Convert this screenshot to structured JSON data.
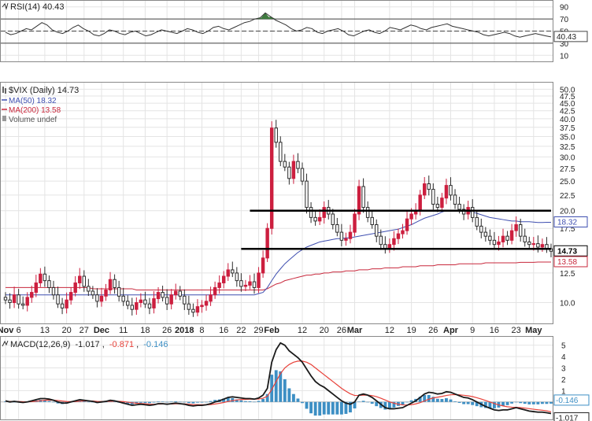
{
  "colors": {
    "up_candle": "#2c2c2c",
    "down_candle": "#cc1f3f",
    "ma50": "#3f4fb0",
    "ma200": "#c8283c",
    "macd_line": "#1a1a1a",
    "signal_line": "#e8423a",
    "histogram": "#3d8fc4",
    "rsi_line": "#333333",
    "rsi_overbought_fill": "#3e7a3e",
    "grid": "#e4e4e4",
    "level_line": "#000000"
  },
  "chart_data": [
    {
      "type": "line",
      "panel": "rsi",
      "legend": "RSI(14) 40.43",
      "last_value_label": "40.43",
      "ylim": [
        0,
        100
      ],
      "y_ticks": [
        "90",
        "70",
        "50",
        "30",
        "10"
      ],
      "y_tick_values": [
        90,
        70,
        50,
        30,
        10
      ],
      "reference_lines": [
        70,
        50,
        30
      ],
      "values": [
        48,
        44,
        46,
        50,
        54,
        52,
        58,
        64,
        60,
        52,
        48,
        46,
        50,
        56,
        60,
        54,
        50,
        44,
        42,
        46,
        52,
        50,
        46,
        44,
        48,
        50,
        46,
        42,
        44,
        48,
        52,
        50,
        48,
        46,
        50,
        54,
        52,
        48,
        46,
        50,
        56,
        58,
        54,
        52,
        56,
        60,
        64,
        66,
        70,
        72,
        80,
        74,
        68,
        64,
        60,
        54,
        50,
        52,
        56,
        54,
        48,
        46,
        50,
        52,
        54,
        50,
        44,
        42,
        46,
        50,
        52,
        48,
        46,
        50,
        56,
        54,
        52,
        56,
        60,
        58,
        54,
        52,
        56,
        58,
        60,
        62,
        58,
        56,
        54,
        52,
        50,
        48,
        44,
        42,
        44,
        46,
        48,
        46,
        42,
        40,
        42,
        44,
        46,
        44,
        42,
        40.43
      ]
    },
    {
      "type": "candlestick",
      "panel": "price",
      "legend": {
        "symbol": "$VIX (Daily) 14.73",
        "ma50": "MA(50) 18.32",
        "ma200": "MA(200) 13.58",
        "volume": "Volume undef"
      },
      "price_tags": [
        "18.32",
        "14.73",
        "13.58"
      ],
      "price_tag_values": [
        18.32,
        14.73,
        13.58
      ],
      "y_scale": "log",
      "ylim": [
        8.7,
        51
      ],
      "y_ticks": [
        "50.0",
        "47.5",
        "45.0",
        "42.5",
        "40.0",
        "37.5",
        "35.0",
        "32.5",
        "30.0",
        "27.5",
        "25.0",
        "22.5",
        "20.0",
        "17.5",
        "15.0",
        "12.5",
        "10.0"
      ],
      "y_tick_values": [
        50,
        47.5,
        45,
        42.5,
        40,
        37.5,
        35,
        32.5,
        30,
        27.5,
        25,
        22.5,
        20,
        17.5,
        15,
        12.5,
        10
      ],
      "x_ticks": [
        "Nov",
        "6",
        "13",
        "20",
        "27",
        "Dec",
        "11",
        "18",
        "26",
        "2018",
        "8",
        "16",
        "22",
        "29",
        "Feb",
        "12",
        "20",
        "26",
        "Mar",
        "12",
        "19",
        "26",
        "Apr",
        "9",
        "16",
        "23",
        "May"
      ],
      "x_tick_day_index": [
        0,
        3,
        9,
        14,
        18,
        22,
        27,
        32,
        37,
        41,
        45,
        50,
        54,
        58,
        61,
        68,
        73,
        77,
        80,
        88,
        93,
        98,
        102,
        107,
        112,
        117,
        121
      ],
      "horizontal_levels": [
        20.0,
        15.0
      ],
      "date_range": [
        "2017-11-01",
        "2018-05-08"
      ],
      "close": [
        10.2,
        10.0,
        10.6,
        9.9,
        9.8,
        10.4,
        10.8,
        11.6,
        12.4,
        11.8,
        11.2,
        10.6,
        9.9,
        9.6,
        10.2,
        10.8,
        11.6,
        12.2,
        11.3,
        10.9,
        10.6,
        10.1,
        10.5,
        11.0,
        11.9,
        11.2,
        10.5,
        10.1,
        9.8,
        9.5,
        10.0,
        10.2,
        9.9,
        9.6,
        10.3,
        10.8,
        10.4,
        9.9,
        10.6,
        10.9,
        10.5,
        9.9,
        9.5,
        9.3,
        9.7,
        9.8,
        10.1,
        10.6,
        11.2,
        11.6,
        12.2,
        12.8,
        12.5,
        11.8,
        11.3,
        11.4,
        11.7,
        11.2,
        12.5,
        14.0,
        17.5,
        37.3,
        33.5,
        29.0,
        27.8,
        25.5,
        29.0,
        27.5,
        25.0,
        20.5,
        19.0,
        18.5,
        19.0,
        20.5,
        19.5,
        18.0,
        17.0,
        16.0,
        16.2,
        17.0,
        19.5,
        24.0,
        20.5,
        19.0,
        18.0,
        16.5,
        15.5,
        15.0,
        15.5,
        16.2,
        16.8,
        17.2,
        18.8,
        19.5,
        20.0,
        22.5,
        24.5,
        23.5,
        21.0,
        20.5,
        22.0,
        24.2,
        22.5,
        21.0,
        20.2,
        19.5,
        20.5,
        19.0,
        17.8,
        17.0,
        16.5,
        16.0,
        15.5,
        15.8,
        16.5,
        16.0,
        17.2,
        18.0,
        16.5,
        15.8,
        15.5,
        15.6,
        15.2,
        15.5,
        15.0,
        14.73
      ],
      "ma50": [
        10.6,
        10.6,
        10.6,
        10.6,
        10.6,
        10.6,
        10.6,
        10.6,
        10.6,
        10.6,
        10.6,
        10.6,
        10.6,
        10.6,
        10.6,
        10.6,
        10.6,
        10.6,
        10.6,
        10.6,
        10.6,
        10.6,
        10.6,
        10.6,
        10.6,
        10.6,
        10.6,
        10.6,
        10.6,
        10.6,
        10.6,
        10.6,
        10.6,
        10.6,
        10.6,
        10.6,
        10.6,
        10.6,
        10.6,
        10.6,
        10.6,
        10.6,
        10.6,
        10.6,
        10.6,
        10.6,
        10.6,
        10.6,
        10.6,
        10.6,
        10.6,
        10.6,
        10.6,
        10.6,
        10.6,
        10.6,
        10.6,
        10.6,
        10.7,
        10.8,
        11.2,
        11.8,
        12.4,
        12.9,
        13.4,
        13.8,
        14.2,
        14.6,
        14.9,
        15.2,
        15.4,
        15.6,
        15.8,
        15.9,
        16.0,
        16.1,
        16.2,
        16.2,
        16.3,
        16.3,
        16.4,
        16.5,
        16.6,
        16.7,
        16.8,
        16.9,
        17.0,
        17.1,
        17.2,
        17.3,
        17.4,
        17.6,
        17.8,
        18.0,
        18.3,
        18.6,
        18.9,
        19.1,
        19.3,
        19.5,
        19.8,
        20.0,
        20.0,
        20.0,
        20.0,
        19.9,
        19.9,
        19.8,
        19.6,
        19.4,
        19.2,
        19.0,
        18.9,
        18.8,
        18.7,
        18.6,
        18.5,
        18.5,
        18.4,
        18.4,
        18.4,
        18.35,
        18.3,
        18.3,
        18.32,
        18.32
      ],
      "ma200": [
        11.2,
        11.2,
        11.2,
        11.2,
        11.2,
        11.2,
        11.2,
        11.2,
        11.2,
        11.2,
        11.2,
        11.2,
        11.2,
        11.2,
        11.2,
        11.2,
        11.2,
        11.2,
        11.2,
        11.2,
        11.1,
        11.1,
        11.1,
        11.1,
        11.1,
        11.1,
        11.1,
        11.1,
        11.1,
        11.1,
        11.0,
        11.0,
        11.0,
        11.0,
        11.0,
        11.0,
        11.0,
        11.0,
        11.0,
        11.0,
        11.0,
        11.0,
        11.0,
        11.0,
        11.0,
        11.0,
        11.0,
        11.0,
        11.0,
        11.0,
        11.0,
        11.0,
        11.0,
        11.0,
        11.0,
        11.0,
        11.0,
        11.0,
        11.0,
        11.0,
        11.1,
        11.3,
        11.5,
        11.6,
        11.8,
        11.9,
        12.0,
        12.1,
        12.2,
        12.3,
        12.3,
        12.4,
        12.4,
        12.5,
        12.5,
        12.6,
        12.6,
        12.6,
        12.7,
        12.7,
        12.7,
        12.8,
        12.8,
        12.8,
        12.9,
        12.9,
        12.9,
        13.0,
        13.0,
        13.0,
        13.0,
        13.1,
        13.1,
        13.1,
        13.1,
        13.2,
        13.2,
        13.2,
        13.2,
        13.3,
        13.3,
        13.3,
        13.3,
        13.3,
        13.4,
        13.4,
        13.4,
        13.4,
        13.4,
        13.4,
        13.5,
        13.5,
        13.5,
        13.5,
        13.5,
        13.5,
        13.5,
        13.5,
        13.55,
        13.55,
        13.55,
        13.55,
        13.58,
        13.58,
        13.58,
        13.58
      ]
    },
    {
      "type": "line",
      "panel": "macd",
      "legend": {
        "title": "MACD(12,26,9)",
        "macd": "-1.017",
        "signal": "-0.871",
        "hist": "-0.146"
      },
      "value_tags": [
        "-0.146",
        "-1.017"
      ],
      "value_tag_values": [
        -0.146,
        -1.017
      ],
      "ylim": [
        -1.4,
        5.6
      ],
      "y_ticks": [
        "5",
        "4",
        "3",
        "2",
        "1"
      ],
      "y_tick_values": [
        5,
        4,
        3,
        2,
        1
      ],
      "series": [
        {
          "name": "MACD",
          "values": [
            0.1,
            0.0,
            0.05,
            0.0,
            -0.05,
            0.0,
            0.1,
            0.2,
            0.3,
            0.3,
            0.25,
            0.15,
            0.0,
            -0.1,
            -0.1,
            0.0,
            0.1,
            0.2,
            0.15,
            0.1,
            0.05,
            -0.05,
            0.0,
            0.05,
            0.15,
            0.1,
            0.0,
            -0.1,
            -0.2,
            -0.3,
            -0.25,
            -0.2,
            -0.25,
            -0.3,
            -0.25,
            -0.15,
            -0.15,
            -0.2,
            -0.15,
            -0.1,
            -0.15,
            -0.2,
            -0.3,
            -0.35,
            -0.3,
            -0.3,
            -0.25,
            -0.15,
            0.0,
            0.1,
            0.25,
            0.4,
            0.45,
            0.4,
            0.35,
            0.3,
            0.3,
            0.25,
            0.35,
            0.6,
            1.2,
            3.5,
            4.6,
            5.2,
            5.0,
            4.5,
            4.2,
            3.9,
            3.5,
            2.9,
            2.3,
            1.8,
            1.5,
            1.3,
            1.0,
            0.7,
            0.4,
            0.1,
            -0.1,
            -0.2,
            0.0,
            0.6,
            0.7,
            0.6,
            0.4,
            0.1,
            -0.2,
            -0.5,
            -0.6,
            -0.6,
            -0.55,
            -0.5,
            -0.3,
            -0.1,
            0.1,
            0.4,
            0.7,
            0.85,
            0.8,
            0.7,
            0.75,
            0.9,
            0.85,
            0.7,
            0.55,
            0.4,
            0.35,
            0.2,
            0.0,
            -0.2,
            -0.4,
            -0.55,
            -0.7,
            -0.75,
            -0.7,
            -0.7,
            -0.6,
            -0.5,
            -0.6,
            -0.7,
            -0.8,
            -0.85,
            -0.9,
            -0.9,
            -0.95,
            -1.017
          ]
        },
        {
          "name": "Signal",
          "values": [
            0.05,
            0.05,
            0.05,
            0.04,
            0.02,
            0.01,
            0.03,
            0.06,
            0.11,
            0.15,
            0.17,
            0.16,
            0.13,
            0.08,
            0.04,
            0.03,
            0.04,
            0.07,
            0.09,
            0.09,
            0.08,
            0.05,
            0.04,
            0.04,
            0.06,
            0.07,
            0.06,
            0.03,
            -0.02,
            -0.08,
            -0.11,
            -0.13,
            -0.16,
            -0.19,
            -0.2,
            -0.19,
            -0.18,
            -0.18,
            -0.18,
            -0.16,
            -0.16,
            -0.17,
            -0.2,
            -0.23,
            -0.24,
            -0.25,
            -0.25,
            -0.23,
            -0.18,
            -0.12,
            -0.05,
            0.04,
            0.12,
            0.18,
            0.21,
            0.23,
            0.24,
            0.24,
            0.26,
            0.33,
            0.5,
            1.1,
            1.8,
            2.5,
            3.0,
            3.3,
            3.5,
            3.6,
            3.6,
            3.5,
            3.3,
            3.0,
            2.7,
            2.4,
            2.1,
            1.8,
            1.5,
            1.2,
            0.95,
            0.72,
            0.57,
            0.58,
            0.6,
            0.6,
            0.56,
            0.47,
            0.33,
            0.17,
            0.01,
            -0.11,
            -0.2,
            -0.26,
            -0.27,
            -0.24,
            -0.17,
            -0.06,
            0.09,
            0.24,
            0.35,
            0.42,
            0.49,
            0.57,
            0.63,
            0.65,
            0.63,
            0.59,
            0.54,
            0.47,
            0.37,
            0.26,
            0.13,
            0.0,
            -0.14,
            -0.26,
            -0.35,
            -0.42,
            -0.46,
            -0.47,
            -0.5,
            -0.54,
            -0.59,
            -0.64,
            -0.69,
            -0.73,
            -0.78,
            -0.871
          ]
        }
      ],
      "histogram": [
        0.05,
        -0.05,
        0.0,
        -0.04,
        -0.07,
        -0.01,
        0.07,
        0.14,
        0.19,
        0.15,
        0.08,
        -0.01,
        -0.13,
        -0.18,
        -0.14,
        -0.03,
        0.06,
        0.13,
        0.06,
        0.01,
        -0.03,
        -0.1,
        -0.04,
        0.01,
        0.09,
        0.03,
        -0.06,
        -0.13,
        -0.18,
        -0.22,
        -0.14,
        -0.07,
        -0.09,
        -0.11,
        -0.05,
        0.04,
        0.03,
        -0.02,
        0.03,
        0.06,
        0.01,
        -0.03,
        -0.1,
        -0.12,
        -0.06,
        -0.05,
        0.0,
        0.08,
        0.18,
        0.22,
        0.3,
        0.36,
        0.33,
        0.22,
        0.14,
        0.07,
        0.06,
        0.01,
        0.09,
        0.27,
        0.7,
        2.4,
        2.8,
        2.7,
        2.0,
        1.2,
        0.7,
        0.3,
        -0.1,
        -0.6,
        -1.0,
        -1.2,
        -1.2,
        -1.1,
        -1.1,
        -1.1,
        -1.1,
        -1.1,
        -1.05,
        -0.92,
        -0.57,
        0.02,
        0.1,
        0.0,
        -0.16,
        -0.37,
        -0.53,
        -0.67,
        -0.61,
        -0.49,
        -0.35,
        -0.24,
        -0.03,
        0.14,
        0.27,
        0.46,
        0.61,
        0.61,
        0.45,
        0.28,
        0.26,
        0.33,
        0.22,
        0.05,
        -0.08,
        -0.19,
        -0.19,
        -0.27,
        -0.37,
        -0.46,
        -0.53,
        -0.55,
        -0.56,
        -0.49,
        -0.35,
        -0.28,
        -0.14,
        -0.03,
        -0.1,
        -0.16,
        -0.21,
        -0.21,
        -0.21,
        -0.17,
        -0.17,
        -0.146
      ]
    }
  ]
}
